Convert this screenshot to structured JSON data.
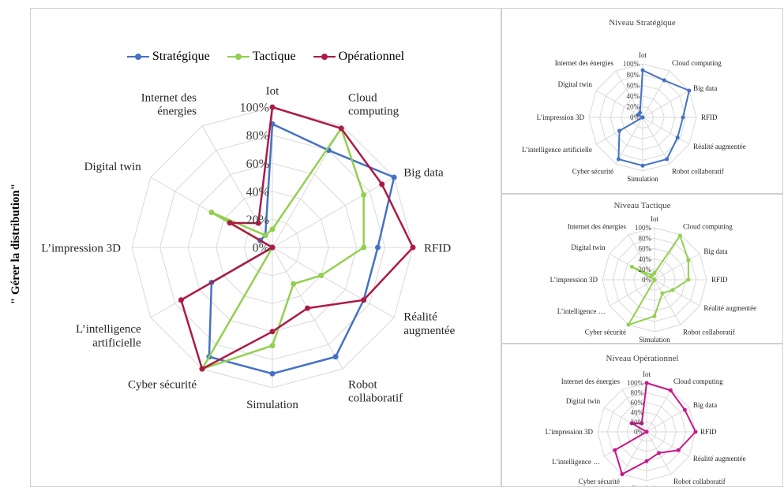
{
  "side_label": "\" Gérer la distribution\"",
  "categories": [
    "Iot",
    "Cloud  computing",
    "Big data",
    "RFID",
    "Réalité augmentée",
    "Robot collaboratif",
    "Simulation",
    "Cyber sécurité",
    "L’intelligence artificielle",
    "L’impression 3D",
    "Digital twin",
    "Internet des énergies"
  ],
  "main_category_labels": [
    [
      "Iot"
    ],
    [
      "Cloud",
      "computing"
    ],
    [
      "Big data"
    ],
    [
      "RFID"
    ],
    [
      "Réalité",
      "augmentée"
    ],
    [
      "Robot",
      "collaboratif"
    ],
    [
      "Simulation"
    ],
    [
      "Cyber sécurité"
    ],
    [
      "L’intelligence",
      "artificielle"
    ],
    [
      "L’impression 3D"
    ],
    [
      "Digital twin"
    ],
    [
      "Internet des",
      "énergies"
    ]
  ],
  "tick_labels": [
    "0%",
    "20%",
    "40%",
    "60%",
    "80%",
    "100%"
  ],
  "legend": [
    {
      "name": "Stratégique",
      "color": "#4472C4"
    },
    {
      "name": "Tactique",
      "color": "#92D050"
    },
    {
      "name": "Opérationnel",
      "color": "#AD1A45"
    }
  ],
  "chart_data": [
    {
      "type": "radar",
      "title": "",
      "categories": [
        "Iot",
        "Cloud  computing",
        "Big data",
        "RFID",
        "Réalité augmentée",
        "Robot collaboratif",
        "Simulation",
        "Cyber sécurité",
        "L’intelligence artificielle",
        "L’impression 3D",
        "Digital twin",
        "Internet des énergies"
      ],
      "rlim": [
        0,
        1
      ],
      "ticks": [
        "0%",
        "20%",
        "40%",
        "60%",
        "80%",
        "100%"
      ],
      "legend_position": "top",
      "series": [
        {
          "name": "Stratégique",
          "color": "#4472C4",
          "values": [
            0.88,
            0.8,
            1.0,
            0.75,
            0.75,
            0.9,
            0.9,
            0.9,
            0.5,
            0.0,
            0.1,
            0.1
          ]
        },
        {
          "name": "Tactique",
          "color": "#92D050",
          "values": [
            0.13,
            0.98,
            0.75,
            0.65,
            0.4,
            0.3,
            0.7,
            1.0,
            0.0,
            0.0,
            0.5,
            0.1
          ]
        },
        {
          "name": "Opérationnel",
          "color": "#AD1A45",
          "values": [
            1.0,
            0.98,
            0.9,
            1.0,
            0.75,
            0.5,
            0.6,
            1.0,
            0.75,
            0.0,
            0.35,
            0.2
          ]
        }
      ]
    },
    {
      "type": "radar",
      "title": "Niveau Stratégique",
      "categories": [
        "Iot",
        "Cloud  computing",
        "Big data",
        "RFID",
        "Réalité augmentée",
        "Robot collaboratif",
        "Simulation",
        "Cyber sécurité",
        "L’intelligence artificielle",
        "L’impression 3D",
        "Digital twin",
        "Internet des énergies"
      ],
      "rlim": [
        0,
        1
      ],
      "ticks": [
        "0%",
        "20%",
        "40%",
        "60%",
        "80%",
        "100%"
      ],
      "series": [
        {
          "color": "#4472C4",
          "values": [
            0.88,
            0.8,
            1.0,
            0.75,
            0.75,
            0.9,
            0.9,
            0.9,
            0.5,
            0.0,
            0.1,
            0.1
          ]
        }
      ]
    },
    {
      "type": "radar",
      "title": "Niveau Tactique",
      "categories": [
        "Iot",
        "Cloud  computing",
        "Big data",
        "RFID",
        "Réalité augmentée",
        "Robot collaboratif",
        "Simulation",
        "Cyber sécurité",
        "L’intelligence …",
        "L’impression 3D",
        "Digital twin",
        "Internet des énergies"
      ],
      "rlim": [
        0,
        1
      ],
      "ticks": [
        "0%",
        "20%",
        "40%",
        "60%",
        "80%",
        "100%"
      ],
      "series": [
        {
          "color": "#92D050",
          "values": [
            0.13,
            0.98,
            0.75,
            0.65,
            0.4,
            0.3,
            0.7,
            1.0,
            0.0,
            0.0,
            0.5,
            0.1
          ]
        }
      ]
    },
    {
      "type": "radar",
      "title": "Niveau Opérationnel",
      "categories": [
        "Iot",
        "Cloud  computing",
        "Big data",
        "RFID",
        "Réalité augmentée",
        "Robot collaboratif",
        "Simulation",
        "Cyber sécurité",
        "L’intelligence …",
        "L’impression 3D",
        "Digital twin",
        "Internet des énergies"
      ],
      "rlim": [
        0,
        1
      ],
      "ticks": [
        "0%",
        "20%",
        "40%",
        "60%",
        "80%",
        "100%"
      ],
      "series": [
        {
          "color": "#C7178B",
          "values": [
            1.0,
            0.98,
            0.9,
            1.0,
            0.75,
            0.5,
            0.6,
            1.0,
            0.75,
            0.0,
            0.35,
            0.2
          ]
        }
      ]
    }
  ]
}
